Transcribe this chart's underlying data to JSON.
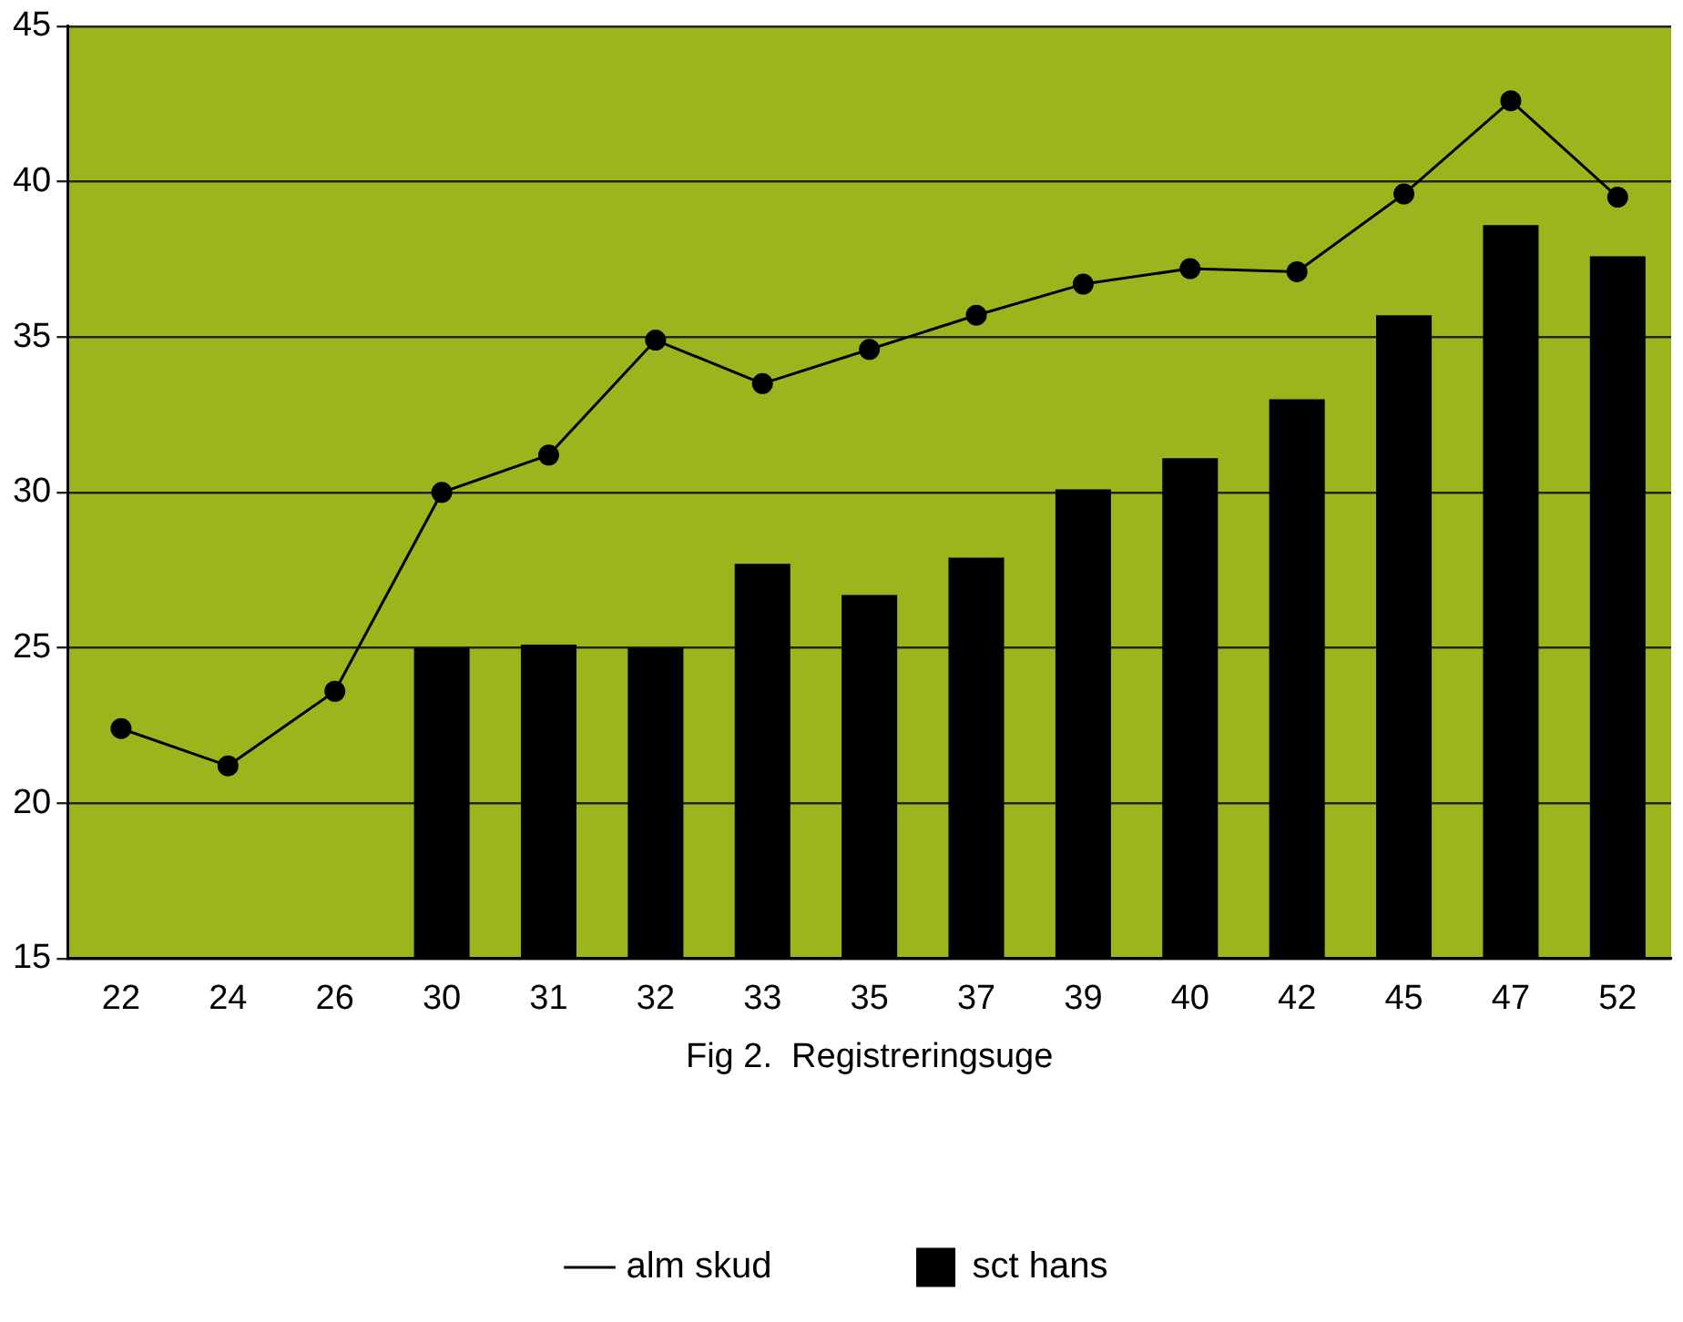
{
  "chart_data": {
    "type": "bar",
    "xlabel": "Fig 2.  Registreringsuge",
    "categories": [
      "22",
      "24",
      "26",
      "30",
      "31",
      "32",
      "33",
      "35",
      "37",
      "39",
      "40",
      "42",
      "45",
      "47",
      "52"
    ],
    "series": [
      {
        "name": "alm skud",
        "type": "line",
        "color": "#000000",
        "marker": "circle",
        "line_style": "solid",
        "values": [
          22.4,
          21.2,
          23.6,
          30.0,
          31.2,
          34.9,
          33.5,
          34.6,
          35.7,
          36.7,
          37.2,
          37.1,
          39.6,
          42.6,
          39.5
        ]
      },
      {
        "name": "sct hans",
        "color": "#000000",
        "values": [
          null,
          null,
          null,
          25.0,
          25.1,
          25.0,
          27.7,
          26.7,
          27.9,
          30.1,
          31.1,
          33.0,
          35.7,
          38.6,
          37.6
        ]
      }
    ],
    "ylim": [
      15,
      45
    ],
    "yticks": [
      15,
      20,
      25,
      30,
      35,
      40,
      45
    ],
    "grid": "y",
    "legend": "bottom"
  }
}
